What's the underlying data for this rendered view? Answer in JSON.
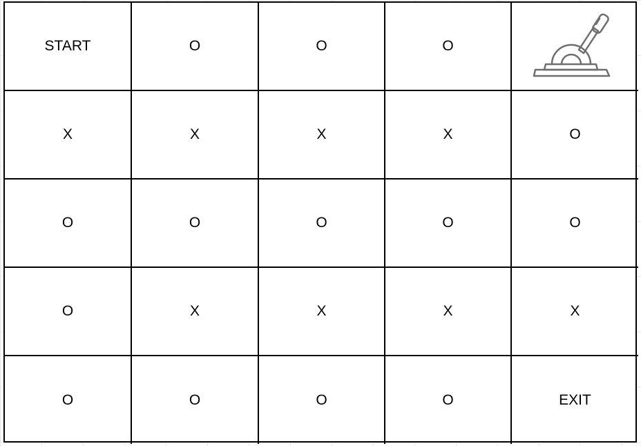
{
  "grid": {
    "rows": [
      [
        "START",
        "O",
        "O",
        "O",
        null
      ],
      [
        "X",
        "X",
        "X",
        "X",
        "O"
      ],
      [
        "O",
        "O",
        "O",
        "O",
        "O"
      ],
      [
        "O",
        "X",
        "X",
        "X",
        "X"
      ],
      [
        "O",
        "O",
        "O",
        "O",
        "EXIT"
      ]
    ],
    "icons": {
      "0-4": "lever-icon"
    },
    "icon_color": "#6e6e6e"
  }
}
